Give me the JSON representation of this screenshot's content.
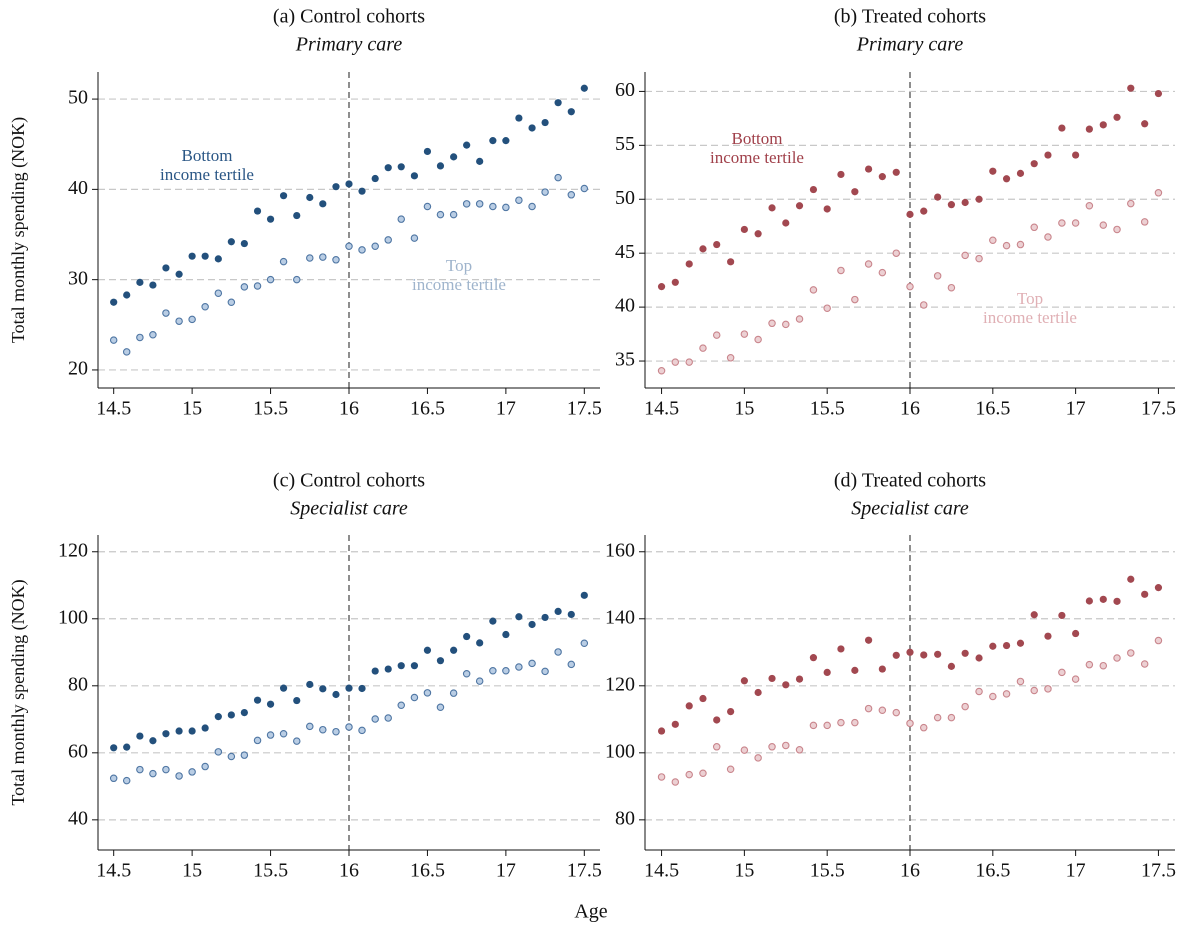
{
  "xlabel": "Age",
  "chart_data": [
    {
      "type": "scatter",
      "title": "(a) Control cohorts",
      "subtitle": "Primary care",
      "ylabel": "Total monthly spending (NOK)",
      "x": [
        14.5,
        14.583,
        14.667,
        14.75,
        14.833,
        14.917,
        15,
        15.083,
        15.167,
        15.25,
        15.333,
        15.417,
        15.5,
        15.583,
        15.667,
        15.75,
        15.833,
        15.917,
        16,
        16.083,
        16.167,
        16.25,
        16.333,
        16.417,
        16.5,
        16.583,
        16.667,
        16.75,
        16.833,
        16.917,
        17,
        17.083,
        17.167,
        17.25,
        17.333,
        17.417,
        17.5
      ],
      "series": [
        {
          "name": "Bottom\nincome tertile",
          "color": "#23507c",
          "edgecolor": "#23507c",
          "label_color": "#2a5685",
          "values": [
            27.5,
            28.3,
            29.7,
            29.4,
            31.3,
            30.6,
            32.6,
            32.6,
            32.3,
            34.2,
            34.0,
            37.6,
            36.7,
            39.3,
            37.1,
            39.1,
            38.4,
            40.3,
            40.6,
            39.8,
            41.2,
            42.4,
            42.5,
            41.5,
            44.2,
            42.6,
            43.6,
            44.9,
            43.1,
            45.4,
            45.4,
            47.9,
            46.8,
            47.4,
            49.6,
            48.6,
            51.2
          ]
        },
        {
          "name": "Top\nincome tertile",
          "color": "#b9cde4",
          "edgecolor": "#4f76a3",
          "label_color": "#9fb4cc",
          "values": [
            23.3,
            22.0,
            23.6,
            23.9,
            26.3,
            25.4,
            25.6,
            27.0,
            28.5,
            27.5,
            29.2,
            29.3,
            30.0,
            32.0,
            30.0,
            32.4,
            32.5,
            32.2,
            33.7,
            33.3,
            33.7,
            34.4,
            36.7,
            34.6,
            38.1,
            37.2,
            37.2,
            38.4,
            38.4,
            38.1,
            38.0,
            38.8,
            38.1,
            39.7,
            41.3,
            39.4,
            40.1
          ]
        }
      ],
      "xlim": [
        14.4,
        17.6
      ],
      "xticks": [
        14.5,
        15,
        15.5,
        16,
        16.5,
        17,
        17.5
      ],
      "ylim": [
        18,
        53
      ],
      "yticks": [
        20,
        30,
        40,
        50
      ],
      "grid": true,
      "vline": 16
    },
    {
      "type": "scatter",
      "title": "(b) Treated cohorts",
      "subtitle": "Primary care",
      "x": [
        14.5,
        14.583,
        14.667,
        14.75,
        14.833,
        14.917,
        15,
        15.083,
        15.167,
        15.25,
        15.333,
        15.417,
        15.5,
        15.583,
        15.667,
        15.75,
        15.833,
        15.917,
        16,
        16.083,
        16.167,
        16.25,
        16.333,
        16.417,
        16.5,
        16.583,
        16.667,
        16.75,
        16.833,
        16.917,
        17,
        17.083,
        17.167,
        17.25,
        17.333,
        17.417,
        17.5
      ],
      "series": [
        {
          "name": "Bottom\nincome tertile",
          "color": "#a24850",
          "edgecolor": "#a24850",
          "label_color": "#a0404a",
          "values": [
            41.9,
            42.3,
            44.0,
            45.4,
            45.8,
            44.2,
            47.2,
            46.8,
            49.2,
            47.8,
            49.4,
            50.9,
            49.1,
            52.3,
            50.7,
            52.8,
            52.1,
            52.5,
            48.6,
            48.9,
            50.2,
            49.5,
            49.7,
            50.0,
            52.6,
            51.9,
            52.4,
            53.3,
            54.1,
            56.6,
            54.1,
            56.5,
            56.9,
            57.6,
            60.3,
            57.0,
            59.8
          ]
        },
        {
          "name": "Top\nincome tertile",
          "color": "#ecd0d3",
          "edgecolor": "#c9858c",
          "label_color": "#e0b0b5",
          "values": [
            34.1,
            34.9,
            34.9,
            36.2,
            37.4,
            35.3,
            37.5,
            37.0,
            38.5,
            38.4,
            38.9,
            41.6,
            39.9,
            43.4,
            40.7,
            44.0,
            43.2,
            45.0,
            41.9,
            40.2,
            42.9,
            41.8,
            44.8,
            44.5,
            46.2,
            45.7,
            45.8,
            47.4,
            46.5,
            47.8,
            47.8,
            49.4,
            47.6,
            47.2,
            49.6,
            47.9,
            50.6
          ]
        }
      ],
      "xlim": [
        14.4,
        17.6
      ],
      "xticks": [
        14.5,
        15,
        15.5,
        16,
        16.5,
        17,
        17.5
      ],
      "ylim": [
        32.5,
        61.8
      ],
      "yticks": [
        35,
        40,
        45,
        50,
        55,
        60
      ],
      "grid": true,
      "vline": 16
    },
    {
      "type": "scatter",
      "title": "(c) Control cohorts",
      "subtitle": "Specialist care",
      "ylabel": "Total monthly spending (NOK)",
      "x": [
        14.5,
        14.583,
        14.667,
        14.75,
        14.833,
        14.917,
        15,
        15.083,
        15.167,
        15.25,
        15.333,
        15.417,
        15.5,
        15.583,
        15.667,
        15.75,
        15.833,
        15.917,
        16,
        16.083,
        16.167,
        16.25,
        16.333,
        16.417,
        16.5,
        16.583,
        16.667,
        16.75,
        16.833,
        16.917,
        17,
        17.083,
        17.167,
        17.25,
        17.333,
        17.417,
        17.5
      ],
      "series": [
        {
          "color": "#23507c",
          "edgecolor": "#23507c",
          "values": [
            61.5,
            61.7,
            65.0,
            63.6,
            65.7,
            66.5,
            66.5,
            67.4,
            70.8,
            71.3,
            72.0,
            75.7,
            74.5,
            79.3,
            75.6,
            80.4,
            79.1,
            77.4,
            79.3,
            79.2,
            84.4,
            85.0,
            86.0,
            86.0,
            90.6,
            87.5,
            90.6,
            94.7,
            92.8,
            99.3,
            95.3,
            100.6,
            98.3,
            100.4,
            102.2,
            101.3,
            107.0
          ]
        },
        {
          "color": "#b9cde4",
          "edgecolor": "#4f76a3",
          "values": [
            52.4,
            51.7,
            55.0,
            53.8,
            55.0,
            53.1,
            54.3,
            55.9,
            60.3,
            58.9,
            59.3,
            63.7,
            65.3,
            65.7,
            63.5,
            67.9,
            66.9,
            66.3,
            67.7,
            66.7,
            70.1,
            70.4,
            74.2,
            76.5,
            77.9,
            73.6,
            77.8,
            83.6,
            81.4,
            84.5,
            84.5,
            85.6,
            86.7,
            84.3,
            90.1,
            86.4,
            92.7
          ]
        }
      ],
      "xlim": [
        14.4,
        17.6
      ],
      "xticks": [
        14.5,
        15,
        15.5,
        16,
        16.5,
        17,
        17.5
      ],
      "ylim": [
        31,
        125
      ],
      "yticks": [
        40,
        60,
        80,
        100,
        120
      ],
      "grid": true,
      "vline": 16
    },
    {
      "type": "scatter",
      "title": "(d) Treated cohorts",
      "subtitle": "Specialist care",
      "x": [
        14.5,
        14.583,
        14.667,
        14.75,
        14.833,
        14.917,
        15,
        15.083,
        15.167,
        15.25,
        15.333,
        15.417,
        15.5,
        15.583,
        15.667,
        15.75,
        15.833,
        15.917,
        16,
        16.083,
        16.167,
        16.25,
        16.333,
        16.417,
        16.5,
        16.583,
        16.667,
        16.75,
        16.833,
        16.917,
        17,
        17.083,
        17.167,
        17.25,
        17.333,
        17.417,
        17.5
      ],
      "series": [
        {
          "color": "#a24850",
          "edgecolor": "#a24850",
          "values": [
            106.5,
            108.5,
            114.0,
            116.2,
            109.8,
            112.3,
            121.5,
            118.0,
            122.2,
            120.3,
            122.0,
            128.4,
            124.0,
            131.0,
            124.6,
            133.6,
            125.0,
            129.1,
            130.0,
            129.2,
            129.4,
            125.8,
            129.7,
            128.3,
            131.8,
            132.0,
            132.7,
            141.2,
            134.8,
            141.0,
            135.6,
            145.3,
            145.8,
            145.2,
            151.8,
            147.3,
            149.3
          ]
        },
        {
          "color": "#ecd0d3",
          "edgecolor": "#c9858c",
          "values": [
            92.8,
            91.3,
            93.5,
            93.9,
            101.8,
            95.1,
            100.8,
            98.5,
            101.8,
            102.2,
            100.9,
            108.2,
            108.2,
            109.0,
            109.0,
            113.2,
            112.7,
            112.0,
            108.8,
            107.5,
            110.5,
            110.5,
            113.8,
            118.3,
            116.8,
            117.6,
            121.3,
            118.6,
            119.1,
            124.0,
            122.0,
            126.3,
            126.0,
            128.3,
            129.8,
            126.5,
            133.5
          ]
        }
      ],
      "xlim": [
        14.4,
        17.6
      ],
      "xticks": [
        14.5,
        15,
        15.5,
        16,
        16.5,
        17,
        17.5
      ],
      "ylim": [
        71,
        165
      ],
      "yticks": [
        80,
        100,
        120,
        140,
        160
      ],
      "grid": true,
      "vline": 16
    }
  ]
}
